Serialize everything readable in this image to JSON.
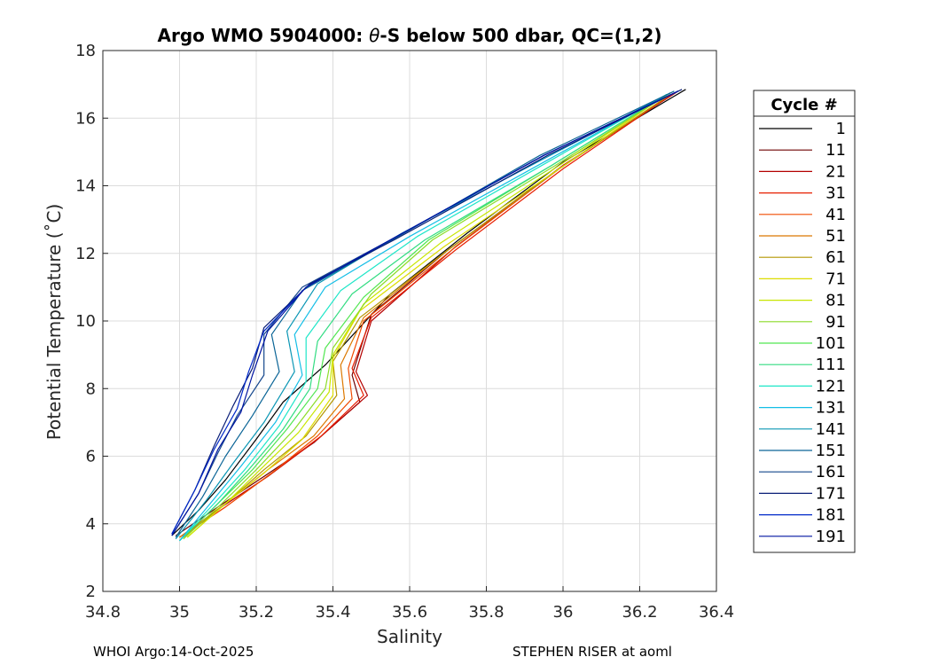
{
  "chart_data": {
    "type": "line",
    "title": "Argo WMO 5904000: θ-S below 500 dbar,  QC=(1,2)",
    "xlabel": "Salinity",
    "ylabel": "Potential Temperature (˚C)",
    "xlim": [
      34.8,
      36.4
    ],
    "ylim": [
      2,
      18
    ],
    "xticks": [
      "34.8",
      "35",
      "35.2",
      "35.4",
      "35.6",
      "35.8",
      "36",
      "36.2",
      "36.4"
    ],
    "yticks": [
      "2",
      "4",
      "6",
      "8",
      "10",
      "12",
      "14",
      "16",
      "18"
    ],
    "grid": true,
    "legend": {
      "title": "Cycle #",
      "placement": "outside-right"
    },
    "series": [
      {
        "name": "1",
        "color": "#000000",
        "points": [
          [
            34.98,
            3.65
          ],
          [
            35.05,
            4.4
          ],
          [
            35.12,
            5.3
          ],
          [
            35.2,
            6.5
          ],
          [
            35.27,
            7.6
          ],
          [
            35.38,
            8.7
          ],
          [
            35.55,
            10.8
          ],
          [
            35.75,
            12.6
          ],
          [
            36.0,
            14.7
          ],
          [
            36.32,
            16.85
          ]
        ]
      },
      {
        "name": "11",
        "color": "#6e0000",
        "points": [
          [
            34.99,
            3.65
          ],
          [
            35.1,
            4.5
          ],
          [
            35.22,
            5.4
          ],
          [
            35.35,
            6.4
          ],
          [
            35.47,
            7.6
          ],
          [
            35.45,
            8.4
          ],
          [
            35.5,
            10.2
          ],
          [
            35.7,
            12.1
          ],
          [
            36.0,
            14.6
          ],
          [
            36.3,
            16.8
          ]
        ]
      },
      {
        "name": "21",
        "color": "#b40000",
        "points": [
          [
            35.0,
            3.6
          ],
          [
            35.11,
            4.5
          ],
          [
            35.23,
            5.4
          ],
          [
            35.36,
            6.5
          ],
          [
            35.49,
            7.8
          ],
          [
            35.46,
            8.5
          ],
          [
            35.5,
            10.0
          ],
          [
            35.72,
            12.2
          ],
          [
            36.0,
            14.6
          ],
          [
            36.3,
            16.8
          ]
        ]
      },
      {
        "name": "31",
        "color": "#e61e00",
        "points": [
          [
            35.0,
            3.6
          ],
          [
            35.12,
            4.5
          ],
          [
            35.24,
            5.5
          ],
          [
            35.37,
            6.6
          ],
          [
            35.48,
            7.8
          ],
          [
            35.45,
            8.6
          ],
          [
            35.5,
            10.1
          ],
          [
            35.72,
            12.1
          ],
          [
            36.0,
            14.5
          ],
          [
            36.29,
            16.75
          ]
        ]
      },
      {
        "name": "41",
        "color": "#f04b00",
        "points": [
          [
            35.0,
            3.6
          ],
          [
            35.12,
            4.5
          ],
          [
            35.24,
            5.5
          ],
          [
            35.36,
            6.6
          ],
          [
            35.45,
            7.7
          ],
          [
            35.44,
            8.6
          ],
          [
            35.48,
            10.0
          ],
          [
            35.71,
            12.1
          ],
          [
            35.99,
            14.5
          ],
          [
            36.28,
            16.7
          ]
        ]
      },
      {
        "name": "51",
        "color": "#dc7800",
        "points": [
          [
            35.0,
            3.6
          ],
          [
            35.12,
            4.6
          ],
          [
            35.23,
            5.6
          ],
          [
            35.35,
            6.6
          ],
          [
            35.43,
            7.7
          ],
          [
            35.42,
            8.7
          ],
          [
            35.48,
            10.1
          ],
          [
            35.7,
            12.1
          ],
          [
            35.99,
            14.5
          ],
          [
            36.28,
            16.7
          ]
        ]
      },
      {
        "name": "61",
        "color": "#b49600",
        "points": [
          [
            35.01,
            3.6
          ],
          [
            35.12,
            4.6
          ],
          [
            35.22,
            5.6
          ],
          [
            35.33,
            6.6
          ],
          [
            35.41,
            7.8
          ],
          [
            35.4,
            8.8
          ],
          [
            35.47,
            10.1
          ],
          [
            35.7,
            12.1
          ],
          [
            35.99,
            14.5
          ],
          [
            36.28,
            16.7
          ]
        ]
      },
      {
        "name": "71",
        "color": "#dcdc00",
        "points": [
          [
            35.02,
            3.6
          ],
          [
            35.12,
            4.6
          ],
          [
            35.22,
            5.5
          ],
          [
            35.32,
            6.5
          ],
          [
            35.4,
            7.8
          ],
          [
            35.4,
            8.9
          ],
          [
            35.47,
            10.3
          ],
          [
            35.69,
            12.2
          ],
          [
            35.99,
            14.5
          ],
          [
            36.27,
            16.7
          ]
        ]
      },
      {
        "name": "81",
        "color": "#c8e600",
        "points": [
          [
            35.02,
            3.6
          ],
          [
            35.12,
            4.6
          ],
          [
            35.21,
            5.6
          ],
          [
            35.31,
            6.7
          ],
          [
            35.39,
            7.9
          ],
          [
            35.4,
            9.0
          ],
          [
            35.48,
            10.5
          ],
          [
            35.68,
            12.3
          ],
          [
            35.99,
            14.6
          ],
          [
            36.27,
            16.7
          ]
        ]
      },
      {
        "name": "91",
        "color": "#8cdc28",
        "points": [
          [
            35.01,
            3.55
          ],
          [
            35.11,
            4.6
          ],
          [
            35.2,
            5.6
          ],
          [
            35.3,
            6.8
          ],
          [
            35.38,
            8.0
          ],
          [
            35.4,
            9.2
          ],
          [
            35.5,
            10.8
          ],
          [
            35.66,
            12.4
          ],
          [
            35.98,
            14.6
          ],
          [
            36.28,
            16.75
          ]
        ]
      },
      {
        "name": "101",
        "color": "#50e650",
        "points": [
          [
            35.0,
            3.5
          ],
          [
            35.1,
            4.6
          ],
          [
            35.19,
            5.6
          ],
          [
            35.28,
            6.8
          ],
          [
            35.36,
            8.0
          ],
          [
            35.38,
            9.2
          ],
          [
            35.48,
            10.7
          ],
          [
            35.65,
            12.4
          ],
          [
            35.97,
            14.6
          ],
          [
            36.27,
            16.7
          ]
        ]
      },
      {
        "name": "111",
        "color": "#32dc82",
        "points": [
          [
            35.0,
            3.5
          ],
          [
            35.1,
            4.6
          ],
          [
            35.18,
            5.6
          ],
          [
            35.27,
            6.8
          ],
          [
            35.34,
            8.0
          ],
          [
            35.36,
            9.4
          ],
          [
            35.45,
            10.8
          ],
          [
            35.64,
            12.4
          ],
          [
            35.97,
            14.6
          ],
          [
            36.27,
            16.7
          ]
        ]
      },
      {
        "name": "121",
        "color": "#1ee6c8",
        "points": [
          [
            35.0,
            3.5
          ],
          [
            35.09,
            4.6
          ],
          [
            35.17,
            5.6
          ],
          [
            35.26,
            6.9
          ],
          [
            35.33,
            8.2
          ],
          [
            35.33,
            9.5
          ],
          [
            35.42,
            10.9
          ],
          [
            35.62,
            12.5
          ],
          [
            35.96,
            14.7
          ],
          [
            36.27,
            16.7
          ]
        ]
      },
      {
        "name": "131",
        "color": "#14bee6",
        "points": [
          [
            35.0,
            3.5
          ],
          [
            35.08,
            4.6
          ],
          [
            35.16,
            5.7
          ],
          [
            35.25,
            7.0
          ],
          [
            35.32,
            8.4
          ],
          [
            35.3,
            9.6
          ],
          [
            35.38,
            11.0
          ],
          [
            35.6,
            12.5
          ],
          [
            35.95,
            14.7
          ],
          [
            36.27,
            16.7
          ]
        ]
      },
      {
        "name": "141",
        "color": "#0a96b4",
        "points": [
          [
            34.99,
            3.55
          ],
          [
            35.07,
            4.7
          ],
          [
            35.14,
            5.8
          ],
          [
            35.22,
            7.0
          ],
          [
            35.3,
            8.5
          ],
          [
            35.28,
            9.7
          ],
          [
            35.36,
            11.1
          ],
          [
            35.58,
            12.6
          ],
          [
            35.95,
            14.8
          ],
          [
            36.28,
            16.75
          ]
        ]
      },
      {
        "name": "151",
        "color": "#0a6496",
        "points": [
          [
            34.99,
            3.6
          ],
          [
            35.06,
            4.8
          ],
          [
            35.12,
            6.0
          ],
          [
            35.19,
            7.2
          ],
          [
            35.26,
            8.5
          ],
          [
            35.24,
            9.6
          ],
          [
            35.32,
            10.9
          ],
          [
            35.54,
            12.3
          ],
          [
            35.94,
            14.9
          ],
          [
            36.29,
            16.8
          ]
        ]
      },
      {
        "name": "161",
        "color": "#14468c",
        "points": [
          [
            34.98,
            3.65
          ],
          [
            35.05,
            4.9
          ],
          [
            35.1,
            6.1
          ],
          [
            35.15,
            7.2
          ],
          [
            35.22,
            8.4
          ],
          [
            35.22,
            9.6
          ],
          [
            35.32,
            11.0
          ],
          [
            35.55,
            12.4
          ],
          [
            35.95,
            14.9
          ],
          [
            36.3,
            16.8
          ]
        ]
      },
      {
        "name": "171",
        "color": "#0a1e78",
        "points": [
          [
            34.98,
            3.7
          ],
          [
            35.04,
            5.0
          ],
          [
            35.09,
            6.3
          ],
          [
            35.14,
            7.5
          ],
          [
            35.19,
            8.6
          ],
          [
            35.22,
            9.8
          ],
          [
            35.34,
            11.1
          ],
          [
            35.56,
            12.4
          ],
          [
            35.96,
            14.9
          ],
          [
            36.31,
            16.85
          ]
        ]
      },
      {
        "name": "181",
        "color": "#0028c8",
        "points": [
          [
            34.98,
            3.7
          ],
          [
            35.04,
            5.0
          ],
          [
            35.09,
            6.2
          ],
          [
            35.15,
            7.4
          ],
          [
            35.18,
            8.5
          ],
          [
            35.22,
            9.7
          ],
          [
            35.33,
            11.0
          ],
          [
            35.55,
            12.4
          ],
          [
            35.95,
            14.9
          ],
          [
            36.3,
            16.8
          ]
        ]
      },
      {
        "name": "191",
        "color": "#0014a0",
        "points": [
          [
            34.98,
            3.65
          ],
          [
            35.05,
            4.9
          ],
          [
            35.1,
            6.2
          ],
          [
            35.16,
            7.3
          ],
          [
            35.19,
            8.4
          ],
          [
            35.23,
            9.7
          ],
          [
            35.33,
            11.0
          ],
          [
            35.55,
            12.4
          ],
          [
            35.95,
            14.9
          ],
          [
            36.3,
            16.8
          ]
        ]
      }
    ]
  },
  "footer": {
    "left": "WHOI Argo:14-Oct-2025",
    "right": "STEPHEN RISER at aoml"
  }
}
